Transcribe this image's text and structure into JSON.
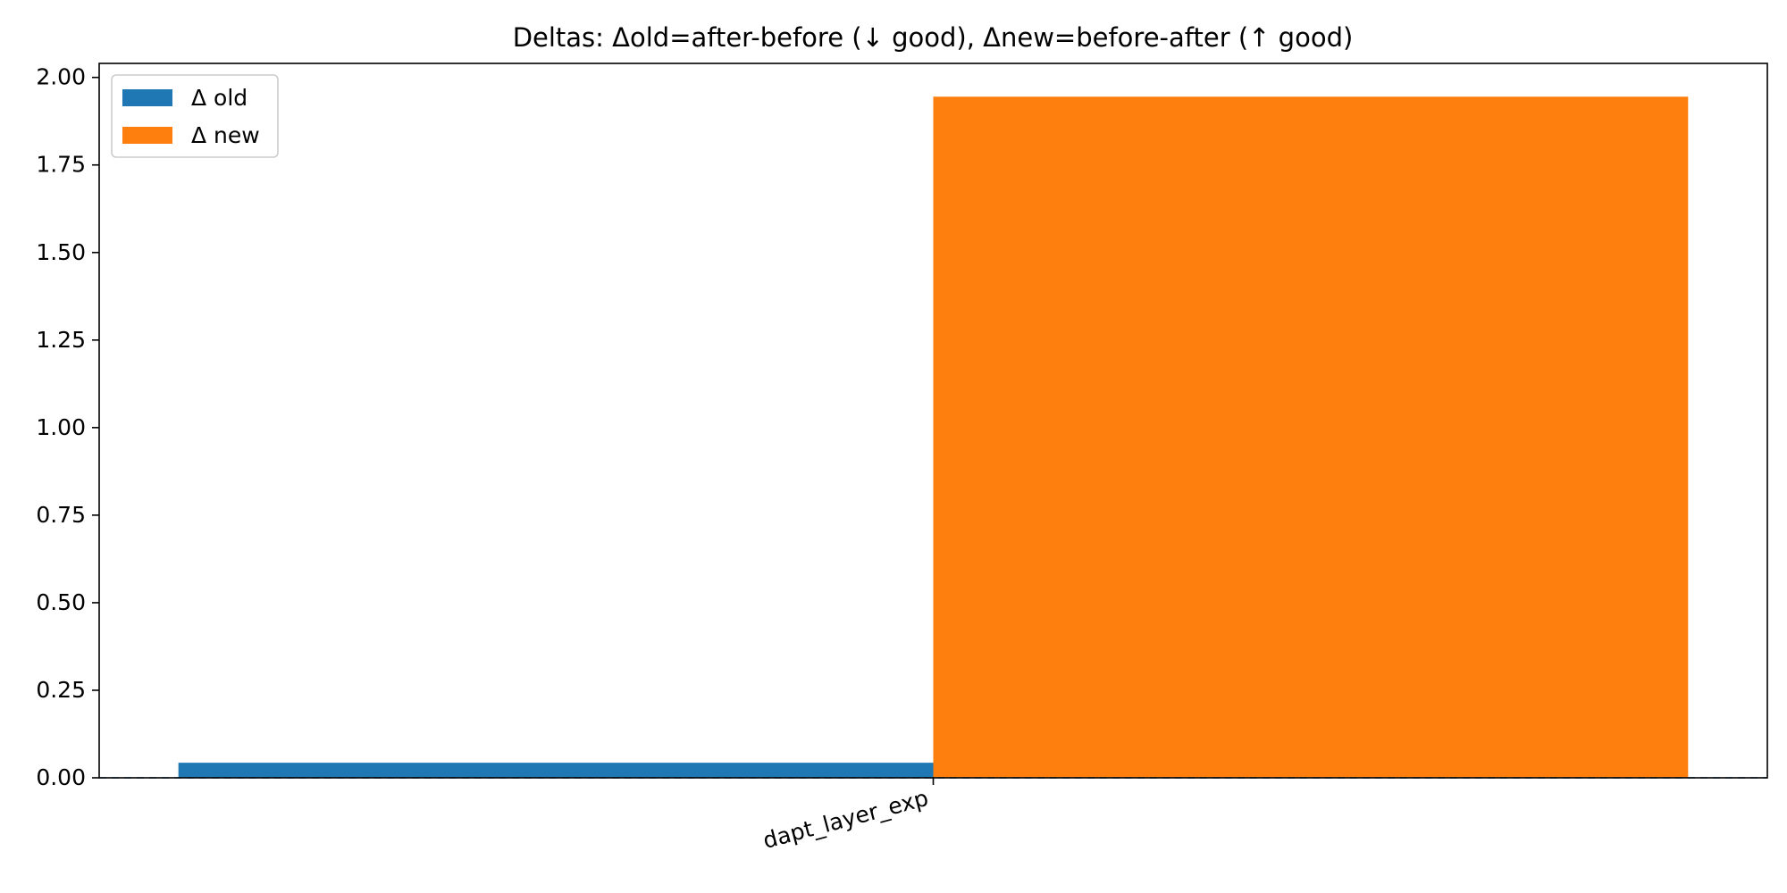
{
  "chart_data": {
    "type": "bar",
    "title": "Deltas: Δold=after-before (↓ good), Δnew=before-after (↑ good)",
    "xlabel": "",
    "ylabel": "",
    "categories": [
      "dapt_layer_exp"
    ],
    "series": [
      {
        "name": "Δ old",
        "values": [
          0.043
        ],
        "color": "#1f77b4"
      },
      {
        "name": "Δ new",
        "values": [
          1.945
        ],
        "color": "#ff7f0e"
      }
    ],
    "ylim": [
      0,
      2.04
    ],
    "yticks": [
      "0.00",
      "0.25",
      "0.50",
      "0.75",
      "1.00",
      "1.25",
      "1.50",
      "1.75",
      "2.00"
    ],
    "xtick_rotation": "rotated",
    "grid": false,
    "reference_line": {
      "value": 0,
      "style": "dashed"
    },
    "legend_placement": "top-left"
  }
}
